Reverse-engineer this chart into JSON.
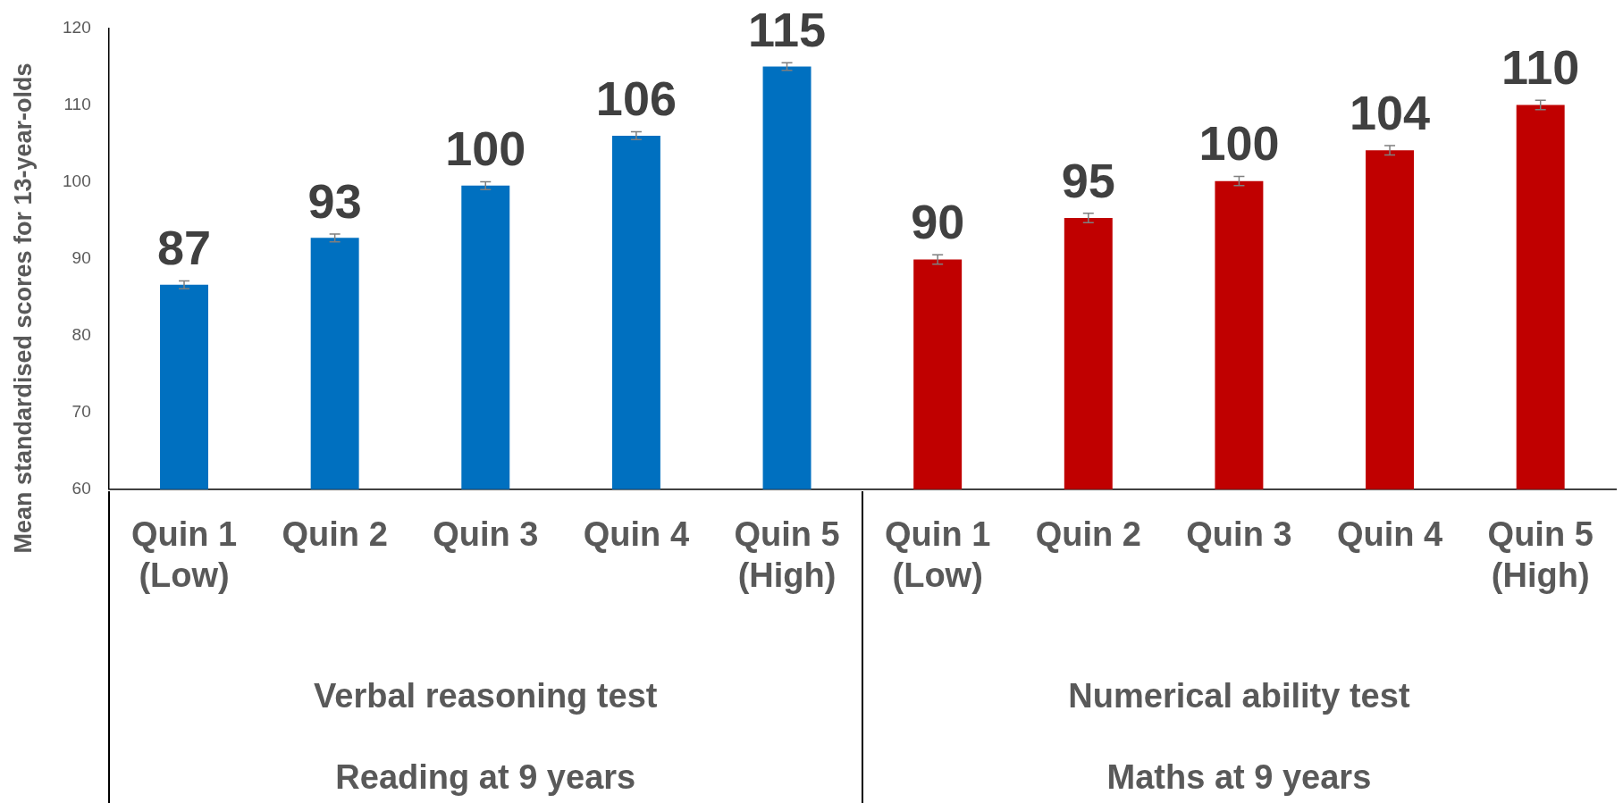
{
  "chart_data": {
    "type": "bar",
    "ylabel": "Mean standardised scores for 13-year-olds",
    "categories": [
      "Quin 1 (Low)",
      "Quin 2",
      "Quin 3",
      "Quin 4",
      "Quin 5 (High)",
      "Quin 1 (Low)",
      "Quin 2",
      "Quin 3",
      "Quin 4",
      "Quin 5 (High)"
    ],
    "values": [
      86.6,
      92.7,
      99.5,
      106.0,
      115.0,
      89.9,
      95.3,
      100.1,
      104.1,
      110.0
    ],
    "errors": [
      0.5,
      0.5,
      0.5,
      0.5,
      0.5,
      0.6,
      0.6,
      0.6,
      0.6,
      0.6
    ],
    "value_labels": [
      "87",
      "93",
      "100",
      "106",
      "115",
      "90",
      "95",
      "100",
      "104",
      "110"
    ],
    "colors": [
      "#0070c0",
      "#0070c0",
      "#0070c0",
      "#0070c0",
      "#0070c0",
      "#c00000",
      "#c00000",
      "#c00000",
      "#c00000",
      "#c00000"
    ],
    "ylim": [
      60,
      120
    ],
    "yticks": [
      60,
      70,
      80,
      90,
      100,
      110,
      120
    ],
    "grid": false,
    "legend": false,
    "annotations": [
      "Verbal reasoning test",
      "Reading at 9 years",
      "Numerical ability test",
      "Maths at 9 years"
    ]
  }
}
